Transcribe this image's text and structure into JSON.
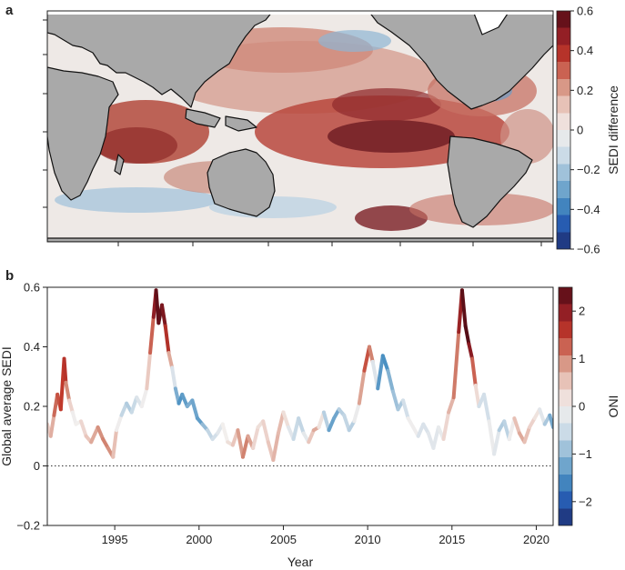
{
  "panels": {
    "a": {
      "label": "a"
    },
    "b": {
      "label": "b"
    }
  },
  "colorbar_a": {
    "title": "SEDI difference",
    "ticks": [
      0.6,
      0.4,
      0.2,
      0,
      -0.2,
      -0.4,
      -0.6
    ],
    "tick_labels": [
      "0.6",
      "0.4",
      "0.2",
      "0",
      "−0.2",
      "−0.4",
      "−0.6"
    ],
    "range": [
      -0.6,
      0.6
    ]
  },
  "colorbar_b": {
    "title": "ONI",
    "ticks": [
      2,
      1,
      0,
      -1,
      -2
    ],
    "tick_labels": [
      "2",
      "1",
      "0",
      "−1",
      "−2"
    ],
    "range": [
      -2.5,
      2.5
    ]
  },
  "colors": {
    "land": "#a9a9a9",
    "coast": "#111111",
    "strong_positive": "#6b0f1a",
    "positive": "#c0392b",
    "neutral": "#f2efed",
    "negative": "#4a90c2",
    "strong_negative": "#1d2b6b"
  },
  "chart_data": {
    "type": "line",
    "xlabel": "Year",
    "ylabel": "Global average SEDI",
    "xlim": [
      1991,
      2021
    ],
    "ylim": [
      -0.2,
      0.6
    ],
    "xticks": [
      1995,
      2000,
      2005,
      2010,
      2015,
      2020
    ],
    "xtick_labels": [
      "1995",
      "2000",
      "2005",
      "2010",
      "2015",
      "2020"
    ],
    "yticks": [
      -0.2,
      0,
      0.2,
      0.4,
      0.6
    ],
    "ytick_labels": [
      "−0.2",
      "0",
      "0.2",
      "0.4",
      "0.6"
    ],
    "reference_line": {
      "y": 0,
      "style": "dotted"
    },
    "color_variable": "ONI",
    "series": [
      {
        "x": [
          1991.0,
          1991.2,
          1991.4,
          1991.6,
          1991.8,
          1992.0,
          1992.1,
          1992.3,
          1992.5,
          1992.7,
          1993.0,
          1993.3,
          1993.6,
          1994.0,
          1994.3,
          1994.6,
          1994.9,
          1995.1,
          1995.4,
          1995.7,
          1996.0,
          1996.3,
          1996.6,
          1996.9,
          1997.1,
          1997.3,
          1997.45,
          1997.6,
          1997.8,
          1998.0,
          1998.2,
          1998.4,
          1998.6,
          1998.8,
          1999.0,
          1999.3,
          1999.6,
          1999.9,
          2000.2,
          2000.5,
          2000.8,
          2001.1,
          2001.4,
          2001.7,
          2002.0,
          2002.3,
          2002.6,
          2002.9,
          2003.2,
          2003.5,
          2003.8,
          2004.1,
          2004.4,
          2004.7,
          2005.0,
          2005.3,
          2005.6,
          2005.9,
          2006.2,
          2006.5,
          2006.8,
          2007.1,
          2007.4,
          2007.7,
          2008.0,
          2008.3,
          2008.6,
          2008.9,
          2009.2,
          2009.5,
          2009.8,
          2010.1,
          2010.3,
          2010.6,
          2010.9,
          2011.2,
          2011.5,
          2011.8,
          2012.1,
          2012.4,
          2012.7,
          2013.0,
          2013.3,
          2013.6,
          2013.9,
          2014.2,
          2014.5,
          2014.8,
          2015.1,
          2015.4,
          2015.6,
          2015.8,
          2016.0,
          2016.2,
          2016.4,
          2016.6,
          2016.9,
          2017.2,
          2017.5,
          2017.8,
          2018.1,
          2018.4,
          2018.7,
          2019.0,
          2019.3,
          2019.6,
          2019.9,
          2020.2,
          2020.5,
          2020.8,
          2021.0
        ],
        "y": [
          0.14,
          0.1,
          0.17,
          0.24,
          0.19,
          0.36,
          0.28,
          0.22,
          0.18,
          0.14,
          0.15,
          0.1,
          0.08,
          0.13,
          0.09,
          0.06,
          0.03,
          0.12,
          0.17,
          0.21,
          0.18,
          0.23,
          0.2,
          0.26,
          0.38,
          0.5,
          0.59,
          0.48,
          0.54,
          0.47,
          0.38,
          0.33,
          0.26,
          0.21,
          0.24,
          0.2,
          0.22,
          0.16,
          0.14,
          0.12,
          0.09,
          0.11,
          0.14,
          0.08,
          0.07,
          0.12,
          0.03,
          0.1,
          0.06,
          0.13,
          0.15,
          0.08,
          0.02,
          0.11,
          0.18,
          0.13,
          0.09,
          0.16,
          0.11,
          0.08,
          0.12,
          0.13,
          0.18,
          0.12,
          0.16,
          0.19,
          0.17,
          0.12,
          0.15,
          0.21,
          0.32,
          0.4,
          0.35,
          0.26,
          0.37,
          0.32,
          0.25,
          0.19,
          0.22,
          0.16,
          0.13,
          0.1,
          0.14,
          0.11,
          0.06,
          0.13,
          0.09,
          0.18,
          0.23,
          0.45,
          0.59,
          0.47,
          0.41,
          0.36,
          0.27,
          0.2,
          0.24,
          0.15,
          0.04,
          0.12,
          0.15,
          0.09,
          0.16,
          0.11,
          0.08,
          0.13,
          0.16,
          0.19,
          0.14,
          0.17,
          0.13
        ],
        "c": [
          0.3,
          0.5,
          0.9,
          1.5,
          1.2,
          1.8,
          1.4,
          0.6,
          0.1,
          -0.2,
          0.2,
          0.4,
          0.6,
          0.9,
          1.0,
          1.1,
          0.8,
          0.3,
          -0.4,
          -0.8,
          -0.7,
          -0.4,
          -0.2,
          0.1,
          0.8,
          1.7,
          2.3,
          2.4,
          2.3,
          2.0,
          1.3,
          0.2,
          -0.9,
          -1.4,
          -1.5,
          -1.2,
          -1.1,
          -1.4,
          -1.3,
          -0.7,
          -0.5,
          -0.4,
          -0.1,
          0.1,
          0.3,
          0.7,
          1.0,
          1.1,
          0.5,
          0.1,
          0.3,
          0.4,
          0.6,
          0.7,
          0.5,
          -0.1,
          -0.4,
          -0.7,
          -0.5,
          0.1,
          0.9,
          0.6,
          -0.3,
          -1.1,
          -1.5,
          -1.0,
          -0.4,
          -0.8,
          -0.6,
          0.4,
          1.2,
          1.5,
          0.6,
          -1.2,
          -1.6,
          -1.4,
          -0.8,
          -1.0,
          -0.6,
          -0.3,
          0.2,
          -0.3,
          -0.4,
          -0.3,
          -0.2,
          -0.3,
          0.0,
          0.6,
          0.7,
          1.5,
          2.3,
          2.5,
          2.4,
          1.7,
          0.8,
          -0.3,
          -0.6,
          -0.3,
          0.1,
          -0.6,
          -0.9,
          -0.4,
          0.3,
          0.8,
          0.7,
          0.4,
          0.3,
          0.0,
          -0.5,
          -1.1,
          -1.3
        ]
      }
    ]
  }
}
